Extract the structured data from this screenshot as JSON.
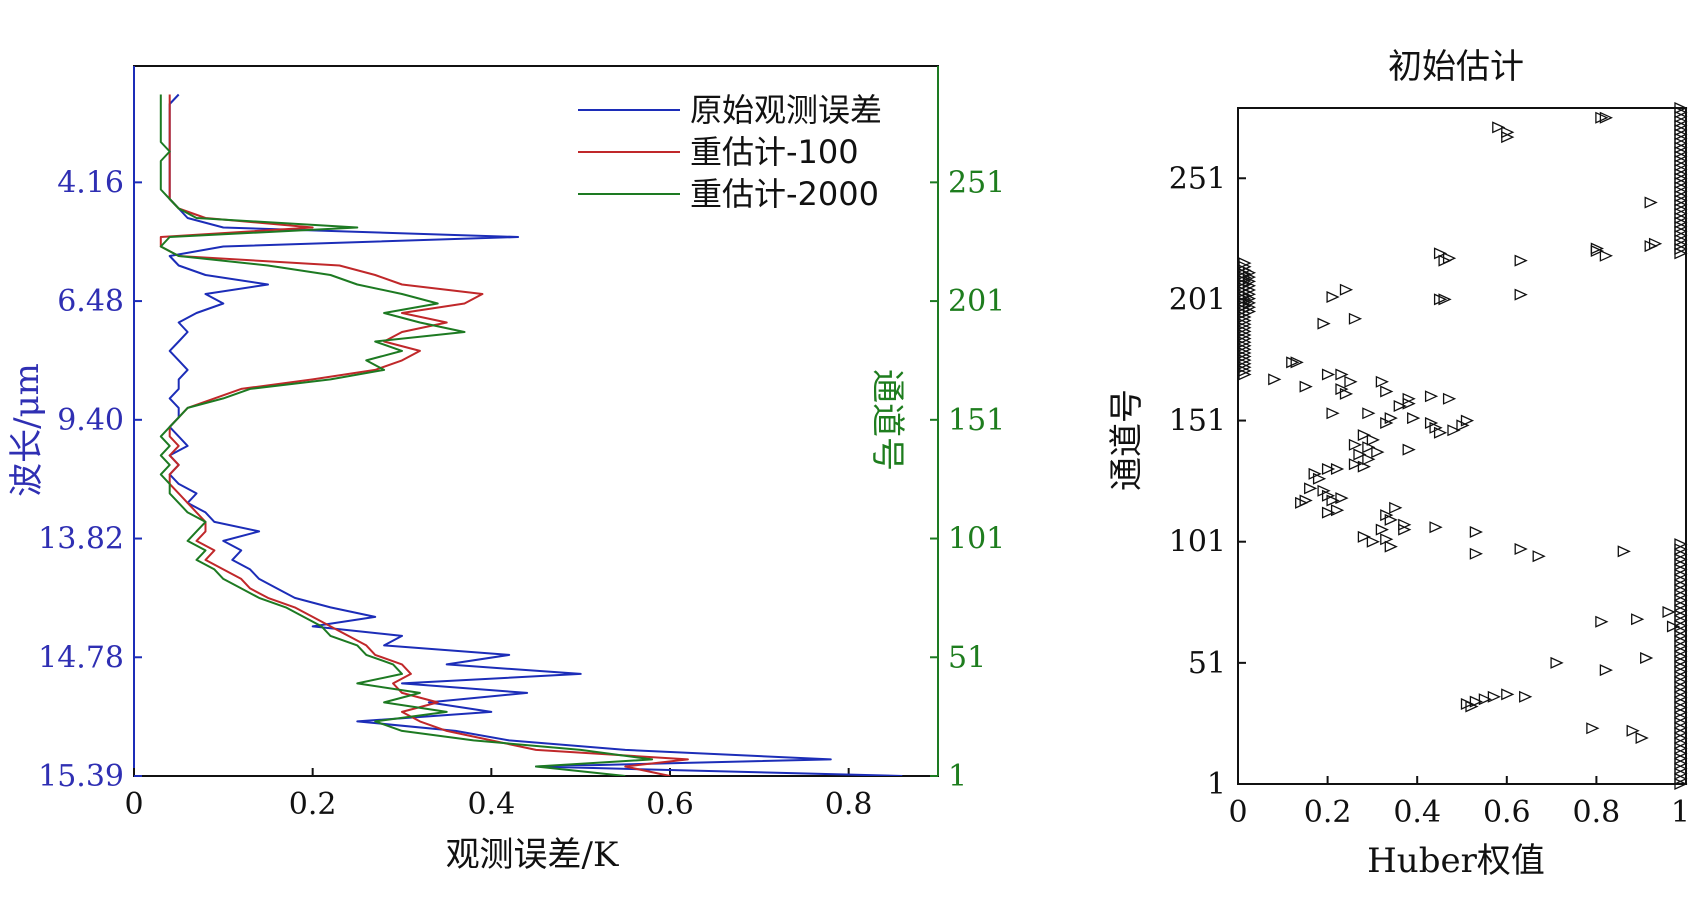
{
  "chart_data": [
    {
      "type": "line",
      "title": "",
      "xlabel": "观测误差/K",
      "ylabel_left": "波长/μm",
      "ylabel_right": "通道号",
      "xlim": [
        0,
        0.9
      ],
      "ylim": [
        1,
        300
      ],
      "xticks": [
        "0",
        "0.2",
        "0.4",
        "0.6",
        "0.8"
      ],
      "xtick_values": [
        0,
        0.2,
        0.4,
        0.6,
        0.8
      ],
      "left_tick_channels": [
        251,
        201,
        151,
        101,
        51,
        1
      ],
      "left_tick_labels": [
        "4.16",
        "6.48",
        "9.40",
        "13.82",
        "14.78",
        "15.39"
      ],
      "right_ticks": [
        "251",
        "201",
        "151",
        "101",
        "51",
        "1"
      ],
      "right_tick_values": [
        251,
        201,
        151,
        101,
        51,
        1
      ],
      "legend_placement": "top-right",
      "series": [
        {
          "name": "原始观测误差",
          "color": "#1c2db8",
          "channel": [
            1,
            5,
            8,
            12,
            16,
            20,
            24,
            28,
            32,
            36,
            40,
            44,
            48,
            52,
            56,
            60,
            64,
            68,
            72,
            76,
            80,
            84,
            88,
            92,
            96,
            100,
            104,
            108,
            112,
            116,
            120,
            124,
            128,
            132,
            136,
            140,
            144,
            148,
            152,
            156,
            160,
            164,
            168,
            172,
            176,
            180,
            184,
            188,
            192,
            196,
            200,
            204,
            208,
            212,
            216,
            220,
            224,
            228,
            232,
            236,
            240,
            244,
            248,
            252,
            256,
            260,
            264,
            268,
            272,
            276,
            280,
            284,
            288
          ],
          "value": [
            0.86,
            0.45,
            0.78,
            0.55,
            0.42,
            0.36,
            0.25,
            0.4,
            0.33,
            0.44,
            0.3,
            0.5,
            0.35,
            0.42,
            0.28,
            0.3,
            0.2,
            0.27,
            0.22,
            0.18,
            0.16,
            0.14,
            0.13,
            0.11,
            0.12,
            0.1,
            0.14,
            0.09,
            0.08,
            0.06,
            0.07,
            0.05,
            0.04,
            0.05,
            0.04,
            0.06,
            0.05,
            0.04,
            0.05,
            0.05,
            0.04,
            0.05,
            0.05,
            0.06,
            0.05,
            0.04,
            0.05,
            0.06,
            0.05,
            0.07,
            0.1,
            0.08,
            0.15,
            0.08,
            0.05,
            0.04,
            0.1,
            0.43,
            0.1,
            0.06,
            0.05,
            0.04,
            0.04,
            0.04,
            0.04,
            0.04,
            0.04,
            0.04,
            0.04,
            0.04,
            0.04,
            0.04,
            0.05
          ]
        },
        {
          "name": "重估计-100",
          "color": "#c0282a",
          "channel": [
            1,
            5,
            8,
            12,
            16,
            20,
            24,
            28,
            32,
            36,
            40,
            44,
            48,
            52,
            56,
            60,
            64,
            68,
            72,
            76,
            80,
            84,
            88,
            92,
            96,
            100,
            104,
            108,
            112,
            116,
            120,
            124,
            128,
            132,
            136,
            140,
            144,
            148,
            152,
            156,
            160,
            164,
            168,
            172,
            176,
            180,
            184,
            188,
            192,
            196,
            200,
            204,
            208,
            212,
            216,
            220,
            224,
            228,
            232,
            236,
            240,
            244,
            248,
            252,
            256,
            260,
            264,
            268,
            272,
            276,
            280,
            284,
            288
          ],
          "value": [
            0.6,
            0.55,
            0.62,
            0.45,
            0.4,
            0.35,
            0.32,
            0.3,
            0.34,
            0.3,
            0.29,
            0.31,
            0.3,
            0.27,
            0.26,
            0.24,
            0.22,
            0.2,
            0.18,
            0.15,
            0.13,
            0.12,
            0.1,
            0.08,
            0.09,
            0.07,
            0.08,
            0.08,
            0.07,
            0.06,
            0.05,
            0.04,
            0.04,
            0.05,
            0.04,
            0.05,
            0.04,
            0.04,
            0.05,
            0.06,
            0.09,
            0.12,
            0.2,
            0.27,
            0.3,
            0.32,
            0.28,
            0.3,
            0.35,
            0.3,
            0.37,
            0.39,
            0.3,
            0.27,
            0.23,
            0.05,
            0.03,
            0.03,
            0.2,
            0.08,
            0.05,
            0.04,
            0.04,
            0.04,
            0.04,
            0.04,
            0.04,
            0.04,
            0.04,
            0.04,
            0.04,
            0.04,
            0.04
          ]
        },
        {
          "name": "重估计-2000",
          "color": "#1d7a22",
          "channel": [
            1,
            5,
            8,
            12,
            16,
            20,
            24,
            28,
            32,
            36,
            40,
            44,
            48,
            52,
            56,
            60,
            64,
            68,
            72,
            76,
            80,
            84,
            88,
            92,
            96,
            100,
            104,
            108,
            112,
            116,
            120,
            124,
            128,
            132,
            136,
            140,
            144,
            148,
            152,
            156,
            160,
            164,
            168,
            172,
            176,
            180,
            184,
            188,
            192,
            196,
            200,
            204,
            208,
            212,
            216,
            220,
            224,
            228,
            232,
            236,
            240,
            244,
            248,
            252,
            256,
            260,
            264,
            268,
            272,
            276,
            280,
            284,
            288
          ],
          "value": [
            0.55,
            0.45,
            0.58,
            0.5,
            0.38,
            0.3,
            0.27,
            0.35,
            0.28,
            0.32,
            0.25,
            0.3,
            0.29,
            0.26,
            0.25,
            0.22,
            0.21,
            0.19,
            0.17,
            0.14,
            0.12,
            0.1,
            0.09,
            0.07,
            0.08,
            0.06,
            0.07,
            0.08,
            0.06,
            0.05,
            0.04,
            0.04,
            0.03,
            0.04,
            0.03,
            0.04,
            0.03,
            0.04,
            0.05,
            0.06,
            0.1,
            0.13,
            0.22,
            0.28,
            0.26,
            0.3,
            0.27,
            0.37,
            0.32,
            0.28,
            0.34,
            0.3,
            0.25,
            0.22,
            0.15,
            0.05,
            0.03,
            0.04,
            0.25,
            0.07,
            0.05,
            0.04,
            0.03,
            0.03,
            0.03,
            0.03,
            0.04,
            0.03,
            0.03,
            0.03,
            0.03,
            0.03,
            0.03
          ]
        }
      ]
    },
    {
      "type": "scatter",
      "title": "初始估计",
      "xlabel": "Huber权值",
      "ylabel": "通道号",
      "xlim": [
        0,
        1
      ],
      "ylim": [
        1,
        280
      ],
      "xticks": [
        "0",
        "0.2",
        "0.4",
        "0.6",
        "0.8",
        "1"
      ],
      "xtick_values": [
        0,
        0.2,
        0.4,
        0.6,
        0.8,
        1
      ],
      "yticks": [
        "251",
        "201",
        "151",
        "101",
        "51",
        "1"
      ],
      "ytick_values": [
        251,
        201,
        151,
        101,
        51,
        1
      ],
      "marker": "triangle-right",
      "points": [
        {
          "x": 0.58,
          "y": 272
        },
        {
          "x": 0.6,
          "y": 270
        },
        {
          "x": 0.6,
          "y": 268
        },
        {
          "x": 0.82,
          "y": 276
        },
        {
          "x": 0.81,
          "y": 276
        },
        {
          "x": 0.92,
          "y": 241
        },
        {
          "x": 0.93,
          "y": 224
        },
        {
          "x": 0.92,
          "y": 223
        },
        {
          "x": 0.8,
          "y": 221
        },
        {
          "x": 0.8,
          "y": 222
        },
        {
          "x": 0.82,
          "y": 219
        },
        {
          "x": 0.45,
          "y": 220
        },
        {
          "x": 0.47,
          "y": 218
        },
        {
          "x": 0.46,
          "y": 217
        },
        {
          "x": 0.63,
          "y": 217
        },
        {
          "x": 0.45,
          "y": 201
        },
        {
          "x": 0.46,
          "y": 201
        },
        {
          "x": 0.63,
          "y": 203
        },
        {
          "x": 0.24,
          "y": 205
        },
        {
          "x": 0.21,
          "y": 202
        },
        {
          "x": 0.19,
          "y": 191
        },
        {
          "x": 0.26,
          "y": 193
        },
        {
          "x": 0.12,
          "y": 175
        },
        {
          "x": 0.13,
          "y": 175
        },
        {
          "x": 0.08,
          "y": 168
        },
        {
          "x": 0.15,
          "y": 165
        },
        {
          "x": 0.2,
          "y": 170
        },
        {
          "x": 0.23,
          "y": 170
        },
        {
          "x": 0.23,
          "y": 164
        },
        {
          "x": 0.25,
          "y": 167
        },
        {
          "x": 0.24,
          "y": 162
        },
        {
          "x": 0.32,
          "y": 167
        },
        {
          "x": 0.33,
          "y": 163
        },
        {
          "x": 0.38,
          "y": 160
        },
        {
          "x": 0.36,
          "y": 157
        },
        {
          "x": 0.38,
          "y": 158
        },
        {
          "x": 0.43,
          "y": 161
        },
        {
          "x": 0.47,
          "y": 160
        },
        {
          "x": 0.21,
          "y": 154
        },
        {
          "x": 0.29,
          "y": 154
        },
        {
          "x": 0.34,
          "y": 152
        },
        {
          "x": 0.33,
          "y": 150
        },
        {
          "x": 0.39,
          "y": 152
        },
        {
          "x": 0.43,
          "y": 150
        },
        {
          "x": 0.44,
          "y": 148
        },
        {
          "x": 0.45,
          "y": 146
        },
        {
          "x": 0.5,
          "y": 149
        },
        {
          "x": 0.51,
          "y": 151
        },
        {
          "x": 0.48,
          "y": 147
        },
        {
          "x": 0.28,
          "y": 145
        },
        {
          "x": 0.3,
          "y": 143
        },
        {
          "x": 0.26,
          "y": 141
        },
        {
          "x": 0.29,
          "y": 140
        },
        {
          "x": 0.27,
          "y": 137
        },
        {
          "x": 0.29,
          "y": 135
        },
        {
          "x": 0.31,
          "y": 138
        },
        {
          "x": 0.38,
          "y": 139
        },
        {
          "x": 0.26,
          "y": 133
        },
        {
          "x": 0.28,
          "y": 132
        },
        {
          "x": 0.2,
          "y": 131
        },
        {
          "x": 0.22,
          "y": 131
        },
        {
          "x": 0.17,
          "y": 129
        },
        {
          "x": 0.18,
          "y": 127
        },
        {
          "x": 0.16,
          "y": 123
        },
        {
          "x": 0.19,
          "y": 122
        },
        {
          "x": 0.2,
          "y": 120
        },
        {
          "x": 0.15,
          "y": 118
        },
        {
          "x": 0.14,
          "y": 117
        },
        {
          "x": 0.21,
          "y": 118
        },
        {
          "x": 0.23,
          "y": 119
        },
        {
          "x": 0.2,
          "y": 113
        },
        {
          "x": 0.22,
          "y": 114
        },
        {
          "x": 0.33,
          "y": 112
        },
        {
          "x": 0.35,
          "y": 115
        },
        {
          "x": 0.34,
          "y": 110
        },
        {
          "x": 0.37,
          "y": 108
        },
        {
          "x": 0.32,
          "y": 106
        },
        {
          "x": 0.37,
          "y": 106
        },
        {
          "x": 0.44,
          "y": 107
        },
        {
          "x": 0.28,
          "y": 103
        },
        {
          "x": 0.3,
          "y": 101
        },
        {
          "x": 0.33,
          "y": 102
        },
        {
          "x": 0.34,
          "y": 99
        },
        {
          "x": 0.53,
          "y": 105
        },
        {
          "x": 0.53,
          "y": 96
        },
        {
          "x": 0.63,
          "y": 98
        },
        {
          "x": 0.67,
          "y": 95
        },
        {
          "x": 0.86,
          "y": 97
        },
        {
          "x": 0.81,
          "y": 68
        },
        {
          "x": 0.89,
          "y": 69
        },
        {
          "x": 0.96,
          "y": 72
        },
        {
          "x": 0.97,
          "y": 66
        },
        {
          "x": 0.91,
          "y": 53
        },
        {
          "x": 0.71,
          "y": 51
        },
        {
          "x": 0.82,
          "y": 48
        },
        {
          "x": 0.64,
          "y": 37
        },
        {
          "x": 0.51,
          "y": 34
        },
        {
          "x": 0.53,
          "y": 35
        },
        {
          "x": 0.55,
          "y": 36
        },
        {
          "x": 0.57,
          "y": 37
        },
        {
          "x": 0.6,
          "y": 38
        },
        {
          "x": 0.52,
          "y": 33
        },
        {
          "x": 0.79,
          "y": 24
        },
        {
          "x": 0.88,
          "y": 23
        },
        {
          "x": 0.9,
          "y": 20
        }
      ],
      "edge_clusters": [
        {
          "x": 0.0,
          "y_from": 170,
          "y_to": 216,
          "count": 32
        },
        {
          "x": 0.01,
          "y_from": 196,
          "y_to": 212,
          "count": 10
        },
        {
          "x": 1.0,
          "y_from": 220,
          "y_to": 280,
          "count": 34
        },
        {
          "x": 1.0,
          "y_from": 1,
          "y_to": 100,
          "count": 48
        }
      ]
    }
  ]
}
